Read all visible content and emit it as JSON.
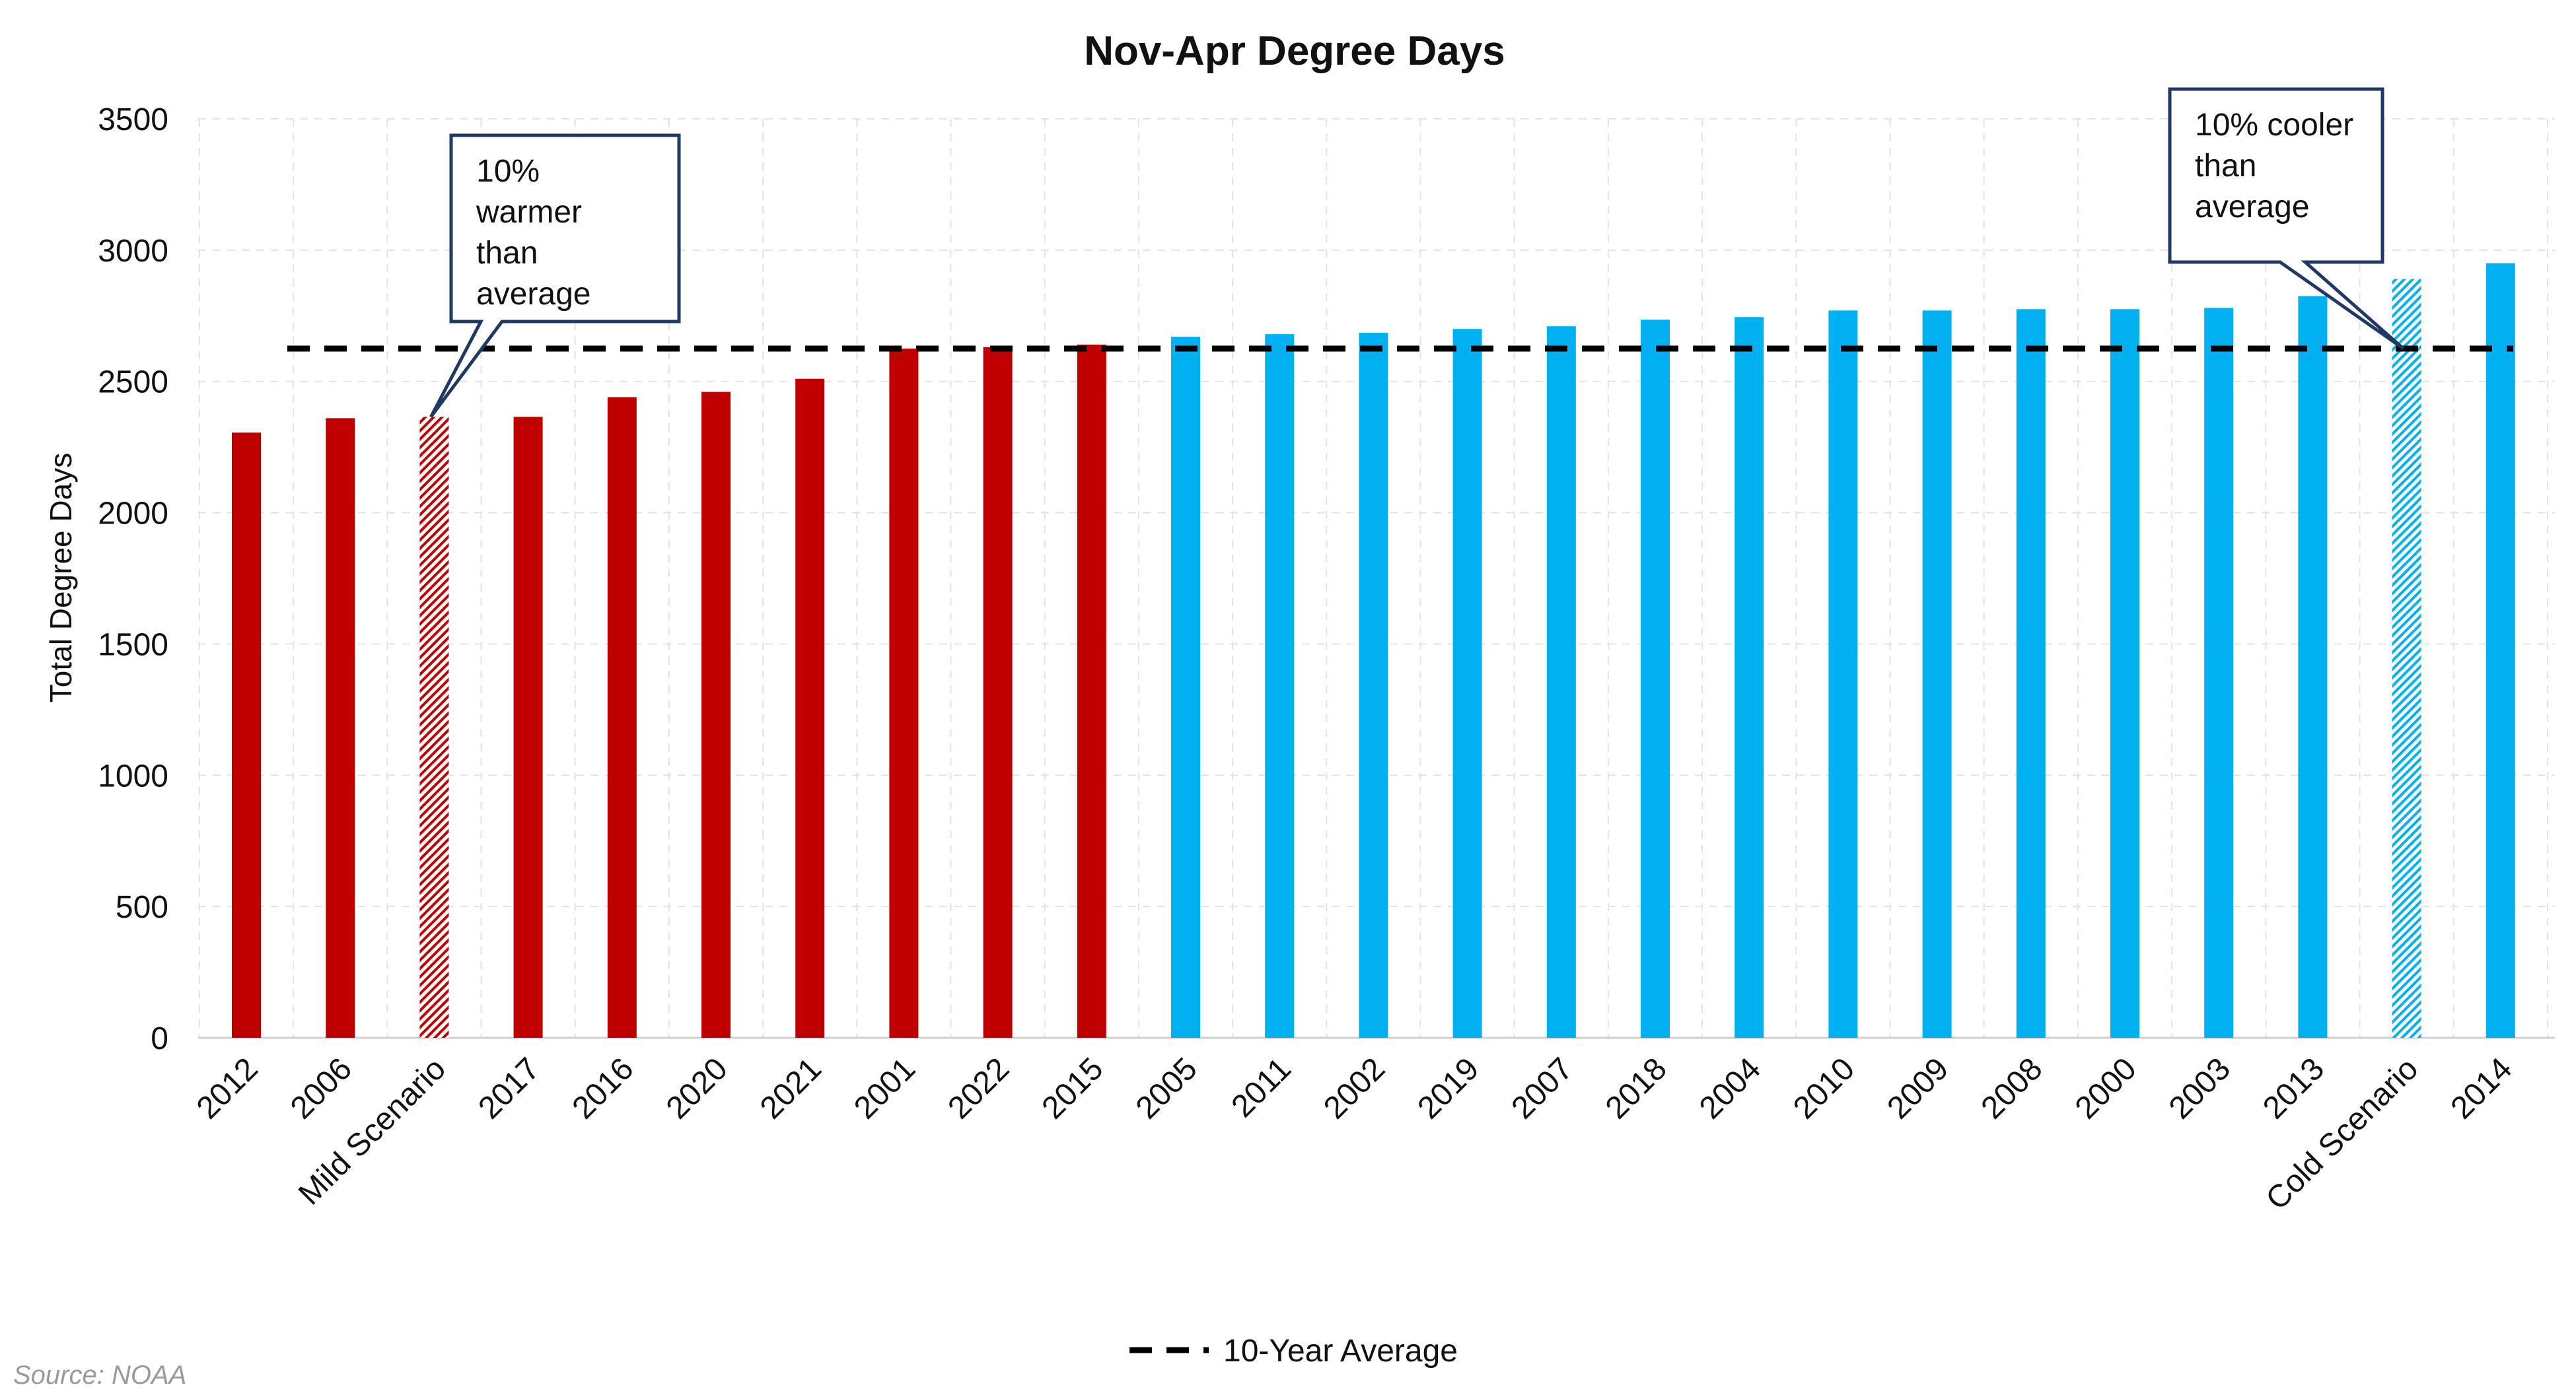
{
  "chart_data": {
    "type": "bar",
    "title": "Nov-Apr Degree Days",
    "ylabel": "Total Degree Days",
    "xlabel": "",
    "ylim": [
      0,
      3500
    ],
    "yticks": [
      0,
      500,
      1000,
      1500,
      2000,
      2500,
      3000,
      3500
    ],
    "grid": true,
    "legend_position": "bottom",
    "categories": [
      "2012",
      "2006",
      "Mild Scenario",
      "2017",
      "2016",
      "2020",
      "2021",
      "2001",
      "2022",
      "2015",
      "2005",
      "2011",
      "2002",
      "2019",
      "2007",
      "2018",
      "2004",
      "2010",
      "2009",
      "2008",
      "2000",
      "2003",
      "2013",
      "Cold Scenario",
      "2014"
    ],
    "values": [
      2305,
      2360,
      2365,
      2365,
      2440,
      2460,
      2510,
      2625,
      2630,
      2640,
      2670,
      2680,
      2685,
      2700,
      2710,
      2735,
      2745,
      2770,
      2770,
      2775,
      2775,
      2780,
      2825,
      2890,
      2950
    ],
    "bar_styles": [
      "warm",
      "warm",
      "warm-hatched",
      "warm",
      "warm",
      "warm",
      "warm",
      "warm",
      "warm",
      "warm",
      "cold",
      "cold",
      "cold",
      "cold",
      "cold",
      "cold",
      "cold",
      "cold",
      "cold",
      "cold",
      "cold",
      "cold",
      "cold",
      "cold-hatched",
      "cold"
    ],
    "reference_line": {
      "name": "10-Year Average",
      "value": 2625,
      "style": "dashed",
      "color": "#000000"
    },
    "annotations": [
      {
        "target": "Mild Scenario",
        "lines": [
          "10%",
          "warmer",
          "than",
          "average"
        ]
      },
      {
        "target": "Cold Scenario",
        "lines": [
          "10% cooler",
          "than",
          "average"
        ]
      }
    ],
    "source": "Source: NOAA"
  },
  "colors": {
    "warm": "#c00000",
    "cold": "#00b0f0",
    "callout_border": "#1f3864",
    "grid": "#e3e3e3",
    "text": "#111111",
    "source": "#9a9a9a"
  }
}
